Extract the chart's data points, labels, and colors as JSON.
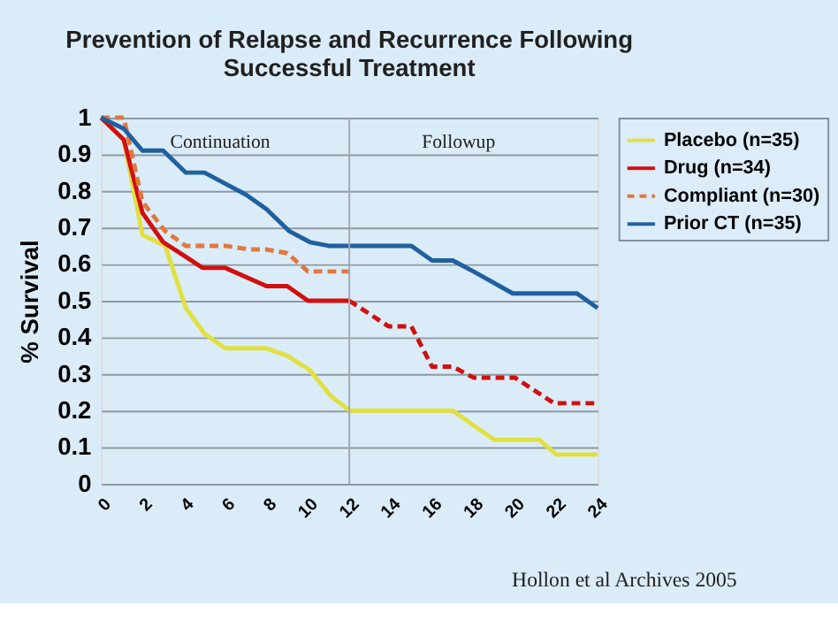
{
  "chart_data": {
    "type": "line",
    "title": "Prevention of Relapse and Recurrence Following Successful Treatment",
    "ylabel": "% Survival",
    "xlim": [
      0,
      24
    ],
    "xticks": [
      0,
      2,
      4,
      6,
      8,
      10,
      12,
      14,
      16,
      18,
      20,
      22,
      24
    ],
    "ylim": [
      0,
      1
    ],
    "yticks": [
      0,
      0.1,
      0.2,
      0.3,
      0.4,
      0.5,
      0.6,
      0.7,
      0.8,
      0.9,
      1
    ],
    "grid": "y",
    "legend": "right",
    "marker": "none",
    "series": [
      {
        "name": "Placebo (n=35)",
        "color": "#e0e040",
        "line_style": "solid",
        "x": [
          0,
          1.1,
          2,
          3.1,
          4.1,
          5,
          6,
          8,
          9,
          10.1,
          11.1,
          12,
          17,
          19,
          21.2,
          22,
          24
        ],
        "values": [
          1,
          0.94,
          0.68,
          0.65,
          0.48,
          0.41,
          0.37,
          0.37,
          0.35,
          0.31,
          0.24,
          0.2,
          0.2,
          0.12,
          0.12,
          0.08,
          0.08
        ]
      },
      {
        "name": "Drug (n=34)",
        "color": "#d01010",
        "line_style": "solid",
        "x": [
          0,
          1.1,
          2,
          3,
          4.1,
          4.9,
          6,
          8,
          9,
          10,
          12
        ],
        "values": [
          1,
          0.94,
          0.74,
          0.66,
          0.62,
          0.59,
          0.59,
          0.54,
          0.54,
          0.5,
          0.5
        ]
      },
      {
        "name": "Compliant (n=30)",
        "color": "#e07840",
        "line_style": "dashed",
        "x": [
          0,
          1.1,
          2,
          3.1,
          4.1,
          6,
          7.2,
          8,
          9,
          10,
          12
        ],
        "values": [
          1,
          1,
          0.77,
          0.69,
          0.65,
          0.65,
          0.64,
          0.64,
          0.63,
          0.58,
          0.58
        ]
      },
      {
        "name": "Prior CT (n=35)",
        "color": "#2060a0",
        "line_style": "solid",
        "x": [
          0,
          1.1,
          2,
          3,
          4.1,
          5,
          6,
          7,
          8,
          9.1,
          10.1,
          11,
          12,
          15,
          16,
          17,
          18,
          19.9,
          23,
          24
        ],
        "values": [
          1,
          0.97,
          0.91,
          0.91,
          0.85,
          0.85,
          0.82,
          0.79,
          0.75,
          0.69,
          0.66,
          0.65,
          0.65,
          0.65,
          0.61,
          0.61,
          0.58,
          0.52,
          0.52,
          0.48
        ]
      },
      {
        "color": "#d01010",
        "line_style": "dashed",
        "x": [
          12,
          13.9,
          15,
          16,
          17,
          18,
          20,
          21.9,
          24
        ],
        "values": [
          0.5,
          0.43,
          0.43,
          0.32,
          0.32,
          0.29,
          0.29,
          0.22,
          0.22
        ]
      }
    ],
    "ref_lines": [
      {
        "axis": "x",
        "value": 12,
        "color": "#a0a8b0"
      }
    ],
    "annotations": [
      "Continuation",
      "Followup",
      "Hollon et al Archives 2005"
    ]
  }
}
